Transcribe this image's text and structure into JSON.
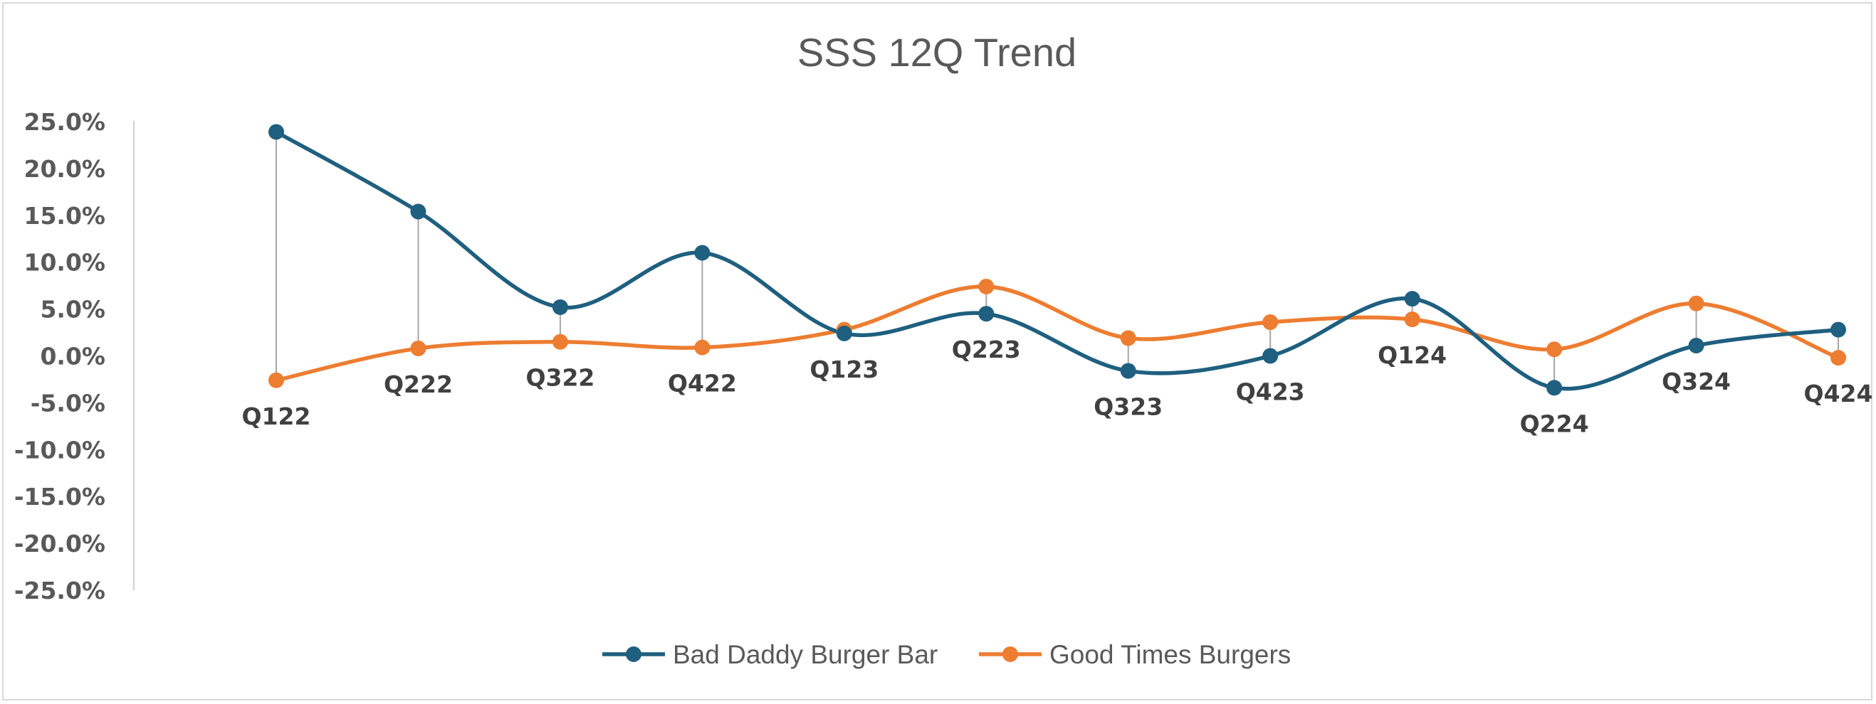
{
  "chart_data": {
    "type": "line",
    "title": "SSS 12Q Trend",
    "categories": [
      "Q122",
      "Q222",
      "Q322",
      "Q422",
      "Q123",
      "Q223",
      "Q323",
      "Q423",
      "Q124",
      "Q224",
      "Q324",
      "Q424"
    ],
    "yticks": [
      "25.0%",
      "20.0%",
      "15.0%",
      "10.0%",
      "5.0%",
      "0.0%",
      "-5.0%",
      "-10.0%",
      "-15.0%",
      "-20.0%",
      "-25.0%"
    ],
    "ylim": [
      -25,
      25
    ],
    "grid": false,
    "legend_position": "bottom",
    "smooth": true,
    "series": [
      {
        "name": "Bad Daddy Burger Bar",
        "color": "#1f5f7f",
        "values": [
          23.9,
          15.4,
          5.2,
          11.0,
          2.4,
          4.5,
          -1.6,
          0.0,
          6.1,
          -3.4,
          1.1,
          2.8
        ]
      },
      {
        "name": "Good Times Burgers",
        "color": "#ed7d31",
        "values": [
          -2.6,
          0.8,
          1.5,
          0.9,
          2.8,
          7.4,
          1.9,
          3.6,
          3.9,
          0.7,
          5.6,
          -0.2
        ]
      }
    ]
  }
}
